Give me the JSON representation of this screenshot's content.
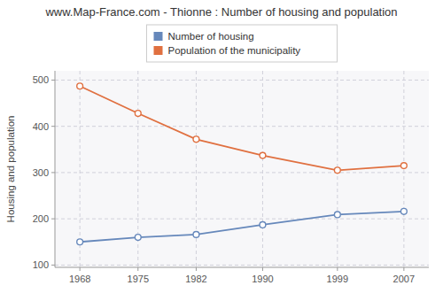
{
  "chart_data": {
    "type": "line",
    "title": "www.Map-France.com - Thionne : Number of housing and population",
    "ylabel": "Housing and population",
    "x": [
      1968,
      1975,
      1982,
      1990,
      1999,
      2007
    ],
    "xlim": [
      1965,
      2010
    ],
    "xticks": [
      1968,
      1975,
      1982,
      1990,
      1999,
      2007
    ],
    "ylim": [
      95,
      520
    ],
    "yticks": [
      100,
      200,
      300,
      400,
      500
    ],
    "series": [
      {
        "name": "Number of housing",
        "color": "#6688bb",
        "marker": "circle",
        "values": [
          150,
          160,
          166,
          187,
          209,
          216
        ]
      },
      {
        "name": "Population of the municipality",
        "color": "#e07040",
        "marker": "circle",
        "values": [
          487,
          428,
          372,
          337,
          305,
          315
        ]
      }
    ],
    "grid": true,
    "legend": "top"
  }
}
